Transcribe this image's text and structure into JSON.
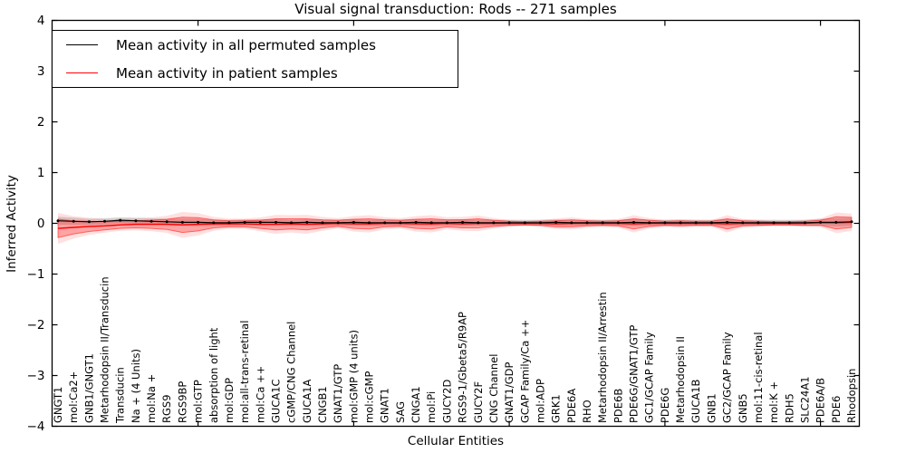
{
  "figure": {
    "title": "Visual signal transduction: Rods -- 271 samples",
    "xlabel": "Cellular Entities",
    "ylabel": "Inferred Activity"
  },
  "legend": {
    "items": [
      {
        "label": "Mean activity in all permuted samples",
        "color": "#000000"
      },
      {
        "label": "Mean activity in patient samples",
        "color": "#ff0000"
      }
    ]
  },
  "chart_data": {
    "type": "line",
    "title": "Visual signal transduction: Rods -- 271 samples",
    "xlabel": "Cellular Entities",
    "ylabel": "Inferred Activity",
    "ylim": [
      -4,
      4
    ],
    "yticks": [
      4,
      3,
      2,
      1,
      0,
      -1,
      -2,
      -3,
      -4
    ],
    "xtick_index_positions": [
      9,
      19,
      29,
      39,
      49
    ],
    "grid": false,
    "legend_position": "upper left",
    "categories": [
      "GNGT1",
      "mol:Ca2+",
      "GNB1/GNGT1",
      "Metarhodopsin II/Transducin",
      "Transducin",
      "Na + (4 Units)",
      "mol:Na +",
      "RGS9",
      "RGS9BP",
      "mol:GTP",
      "absorption of light",
      "mol:GDP",
      "mol:all-trans-retinal",
      "mol:Ca ++",
      "GUCA1C",
      "cGMP/CNG Channel",
      "GUCA1A",
      "CNGB1",
      "GNAT1/GTP",
      "mol:GMP (4 units)",
      "mol:cGMP",
      "GNAT1",
      "SAG",
      "CNGA1",
      "mol:Pi",
      "GUCY2D",
      "RGS9-1/Gbeta5/R9AP",
      "GUCY2F",
      "CNG Channel",
      "GNAT1/GDP",
      "GCAP Family/Ca ++",
      "mol:ADP",
      "GRK1",
      "PDE6A",
      "RHO",
      "Metarhodopsin II/Arrestin",
      "PDE6B",
      "PDE6G/GNAT1/GTP",
      "GC1/GCAP Family",
      "PDE6G",
      "Metarhodopsin II",
      "GUCA1B",
      "GNB1",
      "GC2/GCAP Family",
      "GNB5",
      "mol:11-cis-retinal",
      "mol:K +",
      "RDH5",
      "SLC24A1",
      "PDE6A/B",
      "PDE6",
      "Rhodopsin"
    ],
    "series": [
      {
        "name": "Mean activity in all permuted samples",
        "color": "#000000",
        "marker": "dot",
        "band_color": "rgba(130,130,130,0.30)",
        "values": [
          0.05,
          0.04,
          0.03,
          0.04,
          0.06,
          0.05,
          0.04,
          0.03,
          0.02,
          0.02,
          0.01,
          0.01,
          0.02,
          0.02,
          0.02,
          0.01,
          0.02,
          0.01,
          0.01,
          0.02,
          0.01,
          0.01,
          0.01,
          0.02,
          0.01,
          0.01,
          0.02,
          0.01,
          0.01,
          0.01,
          0.01,
          0.01,
          0.02,
          0.01,
          0.01,
          0.01,
          0.01,
          0.02,
          0.01,
          0.01,
          0.01,
          0.01,
          0.01,
          0.02,
          0.01,
          0.01,
          0.01,
          0.01,
          0.01,
          0.02,
          0.02,
          0.03
        ],
        "band_half_widths": [
          0.08,
          0.07,
          0.06,
          0.06,
          0.06,
          0.06,
          0.06,
          0.06,
          0.07,
          0.07,
          0.06,
          0.06,
          0.06,
          0.06,
          0.06,
          0.06,
          0.06,
          0.06,
          0.06,
          0.06,
          0.06,
          0.06,
          0.06,
          0.06,
          0.06,
          0.06,
          0.06,
          0.06,
          0.06,
          0.06,
          0.06,
          0.06,
          0.06,
          0.06,
          0.06,
          0.06,
          0.06,
          0.07,
          0.06,
          0.06,
          0.06,
          0.06,
          0.06,
          0.07,
          0.06,
          0.06,
          0.06,
          0.06,
          0.06,
          0.07,
          0.08,
          0.08
        ]
      },
      {
        "name": "Mean activity in patient samples",
        "color": "#ff0000",
        "marker": "none",
        "band_color": "rgba(255,0,0,0.27)",
        "values": [
          -0.1,
          -0.08,
          -0.06,
          -0.05,
          -0.03,
          -0.02,
          -0.02,
          -0.02,
          -0.03,
          -0.02,
          -0.01,
          -0.01,
          -0.01,
          -0.02,
          -0.02,
          -0.01,
          -0.02,
          -0.01,
          0.0,
          -0.01,
          -0.01,
          0.0,
          0.0,
          -0.01,
          -0.01,
          0.0,
          -0.01,
          0.0,
          0.0,
          0.0,
          0.0,
          0.0,
          -0.01,
          0.0,
          0.0,
          0.0,
          0.0,
          -0.01,
          0.0,
          0.0,
          0.0,
          0.0,
          0.0,
          -0.01,
          0.0,
          0.0,
          0.0,
          0.0,
          0.0,
          0.01,
          0.01,
          0.02
        ],
        "band_half_widths": [
          0.18,
          0.13,
          0.1,
          0.08,
          0.07,
          0.07,
          0.08,
          0.1,
          0.15,
          0.13,
          0.08,
          0.06,
          0.06,
          0.08,
          0.11,
          0.1,
          0.11,
          0.08,
          0.06,
          0.09,
          0.1,
          0.07,
          0.06,
          0.09,
          0.1,
          0.07,
          0.08,
          0.09,
          0.06,
          0.04,
          0.03,
          0.04,
          0.06,
          0.07,
          0.05,
          0.04,
          0.05,
          0.1,
          0.06,
          0.04,
          0.05,
          0.04,
          0.04,
          0.1,
          0.05,
          0.04,
          0.03,
          0.03,
          0.04,
          0.05,
          0.12,
          0.1
        ]
      }
    ]
  }
}
